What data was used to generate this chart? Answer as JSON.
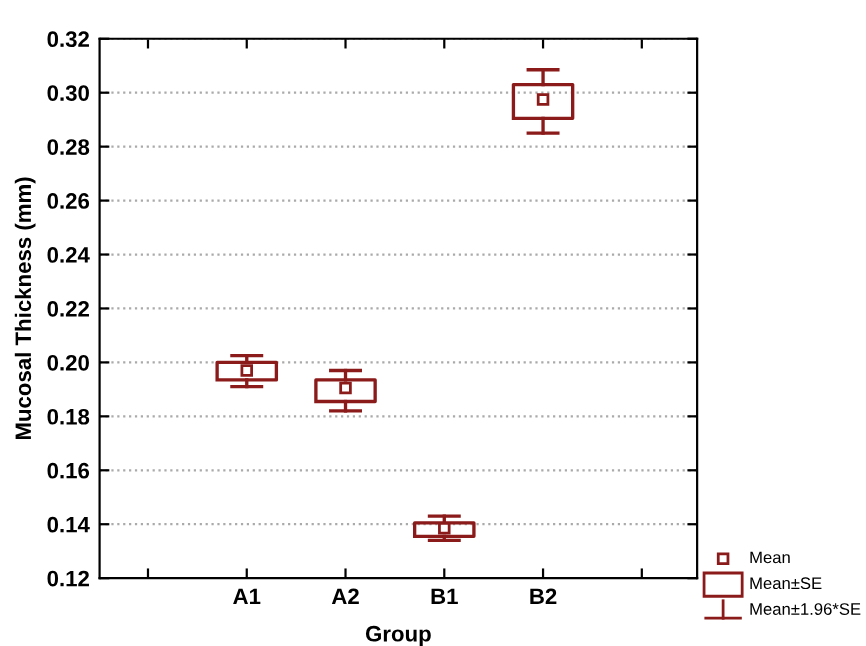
{
  "chart_data": {
    "type": "box",
    "xlabel": "Group",
    "ylabel": "Mucosal Thickness (mm)",
    "categories": [
      null,
      "A1",
      "A2",
      "B1",
      "B2",
      null
    ],
    "series": [
      {
        "color": "#8b1a1a",
        "boxes": [
          null,
          {
            "low": 0.191,
            "q1": 0.1935,
            "median": 0.197,
            "q3": 0.2,
            "high": 0.2025
          },
          {
            "low": 0.182,
            "q1": 0.1855,
            "median": 0.1905,
            "q3": 0.1935,
            "high": 0.197
          },
          {
            "low": 0.134,
            "q1": 0.1355,
            "median": 0.1385,
            "q3": 0.1405,
            "high": 0.143
          },
          {
            "low": 0.285,
            "q1": 0.2905,
            "median": 0.2975,
            "q3": 0.303,
            "high": 0.3085
          },
          null
        ]
      }
    ],
    "ylim": [
      0.12,
      0.32
    ],
    "yticks": [
      {
        "value": 0.12,
        "label": "0.12"
      },
      {
        "value": 0.14,
        "label": "0.14"
      },
      {
        "value": 0.16,
        "label": "0.16"
      },
      {
        "value": 0.18,
        "label": "0.18"
      },
      {
        "value": 0.2,
        "label": "0.20"
      },
      {
        "value": 0.22,
        "label": "0.22"
      },
      {
        "value": 0.24,
        "label": "0.24"
      },
      {
        "value": 0.26,
        "label": "0.26"
      },
      {
        "value": 0.28,
        "label": "0.28"
      },
      {
        "value": 0.3,
        "label": "0.30"
      },
      {
        "value": 0.32,
        "label": "0.32"
      }
    ],
    "grid": "y",
    "marker": "square",
    "annotations": [
      "Mean",
      "Mean±SE",
      "Mean±1.96*SE"
    ]
  }
}
